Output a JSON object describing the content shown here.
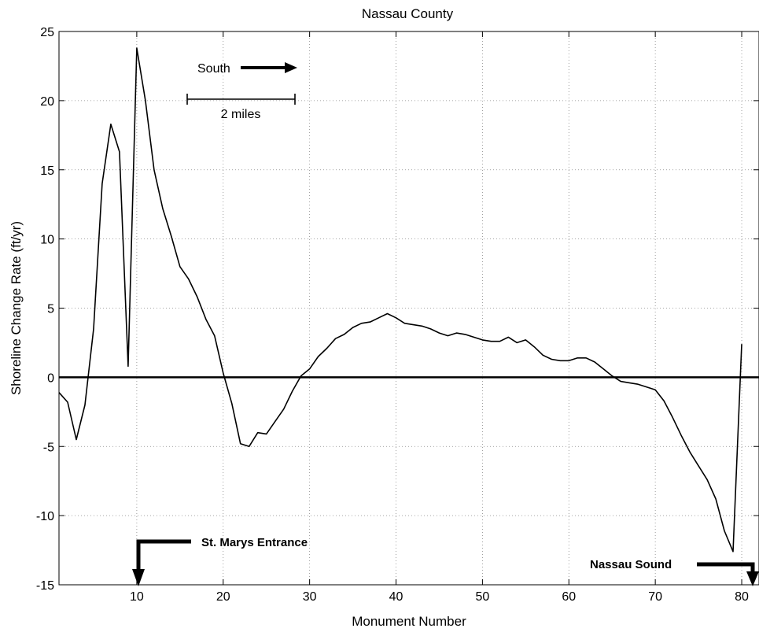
{
  "chart_data": {
    "type": "line",
    "title": "Nassau County",
    "xlabel": "Monument Number",
    "ylabel": "Shoreline Change Rate (ft/yr)",
    "xlim": [
      1,
      82
    ],
    "ylim": [
      -15,
      25
    ],
    "x_ticks": [
      10,
      20,
      30,
      40,
      50,
      60,
      70,
      80
    ],
    "y_ticks": [
      -15,
      -10,
      -5,
      0,
      5,
      10,
      15,
      20,
      25
    ],
    "x_tick_labels": [
      "10",
      "20",
      "30",
      "40",
      "50",
      "60",
      "70",
      "80"
    ],
    "y_tick_labels": [
      "-15",
      "-10",
      "-5",
      "0",
      "5",
      "10",
      "15",
      "20",
      "25"
    ],
    "grid": true,
    "zero_line": true,
    "series": [
      {
        "x": [
          1,
          2,
          3,
          4,
          5,
          6,
          7,
          8,
          9,
          10,
          11,
          12,
          13,
          14,
          15,
          16,
          17,
          18,
          19,
          20,
          21,
          22,
          23,
          24,
          25,
          26,
          27,
          28,
          29,
          30,
          31,
          32,
          33,
          34,
          35,
          36,
          37,
          38,
          39,
          40,
          41,
          42,
          43,
          44,
          45,
          46,
          47,
          48,
          49,
          50,
          51,
          52,
          53,
          54,
          55,
          56,
          57,
          58,
          59,
          60,
          61,
          62,
          63,
          64,
          65,
          66,
          67,
          68,
          69,
          70,
          71,
          72,
          73,
          74,
          75,
          76,
          77,
          78,
          79,
          80
        ],
        "y": [
          -1.1,
          -1.8,
          -4.5,
          -2.0,
          3.5,
          14.0,
          18.3,
          16.3,
          0.8,
          23.8,
          20.0,
          15.0,
          12.2,
          10.2,
          8.0,
          7.1,
          5.8,
          4.2,
          3.0,
          0.3,
          -1.9,
          -4.8,
          -5.0,
          -4.0,
          -4.1,
          -3.2,
          -2.3,
          -1.0,
          0.1,
          0.6,
          1.5,
          2.1,
          2.8,
          3.1,
          3.6,
          3.9,
          4.0,
          4.3,
          4.6,
          4.3,
          3.9,
          3.8,
          3.7,
          3.5,
          3.2,
          3.0,
          3.2,
          3.1,
          2.9,
          2.7,
          2.6,
          2.6,
          2.9,
          2.5,
          2.7,
          2.2,
          1.6,
          1.3,
          1.2,
          1.2,
          1.4,
          1.4,
          1.1,
          0.6,
          0.1,
          -0.3,
          -0.4,
          -0.5,
          -0.7,
          -0.9,
          -1.7,
          -2.9,
          -4.2,
          -5.4,
          -6.4,
          -7.4,
          -8.8,
          -11.1,
          -12.6,
          2.4
        ]
      }
    ],
    "annotations": {
      "direction_label": "South",
      "scale_label": "2 miles",
      "inlet1_label": "St. Marys Entrance",
      "inlet2_label": "Nassau Sound"
    }
  }
}
